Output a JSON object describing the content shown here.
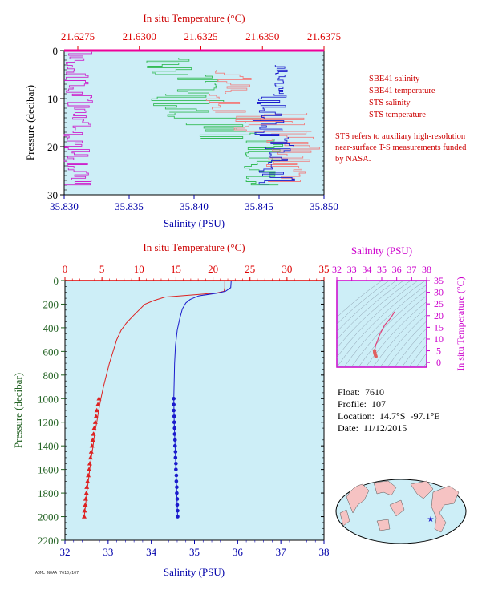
{
  "top_chart": {
    "top_axis_title": "In situ Temperature (°C)",
    "bottom_axis_title": "Salinity (PSU)",
    "y_axis_title": "Pressure (decibar)",
    "top_ticks": [
      "21.6275",
      "21.6300",
      "21.6325",
      "21.6350",
      "21.6375"
    ],
    "bottom_ticks": [
      "35.830",
      "35.835",
      "35.840",
      "35.845",
      "35.850"
    ],
    "y_ticks": [
      "0",
      "10",
      "20",
      "30"
    ],
    "legend": [
      {
        "label": "SBE41 salinity",
        "color": "#1a1acc"
      },
      {
        "label": "SBE41 temperature",
        "color": "#dd2222"
      },
      {
        "label": "STS salinity",
        "color": "#cc22cc"
      },
      {
        "label": "STS temperature",
        "color": "#33bb55"
      }
    ],
    "note": "STS refers to auxiliary high-resolution near-surface T-S measurements funded by NASA."
  },
  "main_chart": {
    "top_axis_title": "In situ Temperature (°C)",
    "bottom_axis_title": "Salinity (PSU)",
    "y_axis_title": "Pressure (decibar)",
    "top_ticks": [
      "0",
      "5",
      "10",
      "15",
      "20",
      "25",
      "30",
      "35"
    ],
    "bottom_ticks": [
      "32",
      "33",
      "34",
      "35",
      "36",
      "37",
      "38"
    ],
    "y_ticks": [
      "0",
      "200",
      "400",
      "600",
      "800",
      "1000",
      "1200",
      "1400",
      "1600",
      "1800",
      "2000",
      "2200"
    ]
  },
  "ts_chart": {
    "top_axis_title": "Salinity (PSU)",
    "right_axis_title": "In situ Temperature (°C)",
    "top_ticks": [
      "32",
      "33",
      "34",
      "35",
      "36",
      "37",
      "38"
    ],
    "right_ticks": [
      "0",
      "5",
      "10",
      "15",
      "20",
      "25",
      "30",
      "35"
    ]
  },
  "info": {
    "float": "Float:  7610",
    "profile": "Profile:  107",
    "location": "Location:  14.7°S  -97.1°E",
    "date": "Date:  11/12/2015"
  },
  "footer_code": "AOML NOAA 7610/107",
  "colors": {
    "background_panel": "#cdeef7",
    "temperature": "#dd2222",
    "salinity": "#1a1acc",
    "sts_salinity": "#cc22cc",
    "sts_temperature": "#33bb55",
    "axis_red": "#dd0000",
    "axis_blue": "#0000aa",
    "axis_green": "#1f5f1f",
    "axis_magenta": "#cc00cc"
  },
  "chart_data": [
    {
      "type": "line",
      "title": "",
      "xlabel": "Salinity (PSU)",
      "x2label": "In situ Temperature (°C)",
      "ylabel": "Pressure (decibar)",
      "xlim": [
        32,
        38
      ],
      "x2lim": [
        0,
        35
      ],
      "ylim": [
        2200,
        0
      ],
      "grid": false,
      "series": [
        {
          "name": "temperature",
          "axis": "top",
          "points": [
            [
              21.6,
              0
            ],
            [
              21.6,
              60
            ],
            [
              21.5,
              90
            ],
            [
              20.5,
              105
            ],
            [
              17.5,
              120
            ],
            [
              13.5,
              140
            ],
            [
              12.0,
              170
            ],
            [
              10.8,
              200
            ],
            [
              10.0,
              250
            ],
            [
              9.2,
              300
            ],
            [
              8.3,
              360
            ],
            [
              7.6,
              420
            ],
            [
              7.0,
              500
            ],
            [
              6.5,
              600
            ],
            [
              6.0,
              700
            ],
            [
              5.6,
              800
            ],
            [
              5.2,
              900
            ],
            [
              4.85,
              1000
            ],
            [
              4.55,
              1100
            ],
            [
              4.3,
              1200
            ],
            [
              4.0,
              1300
            ],
            [
              3.8,
              1400
            ],
            [
              3.55,
              1500
            ],
            [
              3.35,
              1600
            ],
            [
              3.15,
              1700
            ],
            [
              2.95,
              1800
            ],
            [
              2.8,
              1900
            ],
            [
              2.6,
              2000
            ]
          ],
          "markers": [
            [
              4.6,
              1000
            ],
            [
              4.45,
              1050
            ],
            [
              4.3,
              1100
            ],
            [
              4.2,
              1150
            ],
            [
              4.1,
              1200
            ],
            [
              3.95,
              1250
            ],
            [
              3.85,
              1300
            ],
            [
              3.75,
              1350
            ],
            [
              3.65,
              1400
            ],
            [
              3.55,
              1450
            ],
            [
              3.45,
              1500
            ],
            [
              3.35,
              1550
            ],
            [
              3.25,
              1600
            ],
            [
              3.15,
              1650
            ],
            [
              3.05,
              1700
            ],
            [
              2.95,
              1750
            ],
            [
              2.9,
              1800
            ],
            [
              2.8,
              1850
            ],
            [
              2.75,
              1900
            ],
            [
              2.65,
              1950
            ],
            [
              2.6,
              2000
            ]
          ]
        },
        {
          "name": "salinity",
          "axis": "bottom",
          "points": [
            [
              35.85,
              0
            ],
            [
              35.84,
              60
            ],
            [
              35.72,
              90
            ],
            [
              35.55,
              105
            ],
            [
              35.1,
              130
            ],
            [
              34.9,
              160
            ],
            [
              34.8,
              190
            ],
            [
              34.72,
              240
            ],
            [
              34.66,
              320
            ],
            [
              34.6,
              420
            ],
            [
              34.56,
              550
            ],
            [
              34.54,
              700
            ],
            [
              34.53,
              850
            ],
            [
              34.52,
              1000
            ],
            [
              34.53,
              1200
            ],
            [
              34.55,
              1400
            ],
            [
              34.57,
              1600
            ],
            [
              34.59,
              1800
            ],
            [
              34.61,
              2000
            ]
          ],
          "markers": [
            [
              34.52,
              1000
            ],
            [
              34.52,
              1050
            ],
            [
              34.52,
              1100
            ],
            [
              34.53,
              1150
            ],
            [
              34.53,
              1200
            ],
            [
              34.54,
              1250
            ],
            [
              34.54,
              1300
            ],
            [
              34.55,
              1350
            ],
            [
              34.55,
              1400
            ],
            [
              34.56,
              1450
            ],
            [
              34.56,
              1500
            ],
            [
              34.57,
              1550
            ],
            [
              34.57,
              1600
            ],
            [
              34.58,
              1650
            ],
            [
              34.58,
              1700
            ],
            [
              34.59,
              1750
            ],
            [
              34.59,
              1800
            ],
            [
              34.6,
              1850
            ],
            [
              34.6,
              1900
            ],
            [
              34.61,
              1950
            ],
            [
              34.61,
              2000
            ]
          ]
        }
      ]
    },
    {
      "type": "scatter",
      "title": "",
      "xlabel": "Salinity (PSU)",
      "ylabel": "In situ Temperature (°C)",
      "xlim": [
        32,
        38
      ],
      "ylim": [
        -2,
        35
      ],
      "series": [
        {
          "name": "T-S",
          "points": [
            [
              35.85,
              21.6
            ],
            [
              35.6,
              19
            ],
            [
              35.2,
              16
            ],
            [
              34.95,
              13
            ],
            [
              34.8,
              11
            ],
            [
              34.7,
              9
            ],
            [
              34.6,
              7.5
            ],
            [
              34.55,
              6
            ],
            [
              34.52,
              5
            ],
            [
              34.53,
              4.3
            ],
            [
              34.56,
              3.6
            ],
            [
              34.59,
              3.0
            ],
            [
              34.61,
              2.6
            ]
          ]
        }
      ]
    },
    {
      "type": "line",
      "title": "",
      "xlabel": "Salinity (PSU)",
      "x2label": "In situ Temperature (°C)",
      "ylabel": "Pressure (decibar)",
      "xlim": [
        35.83,
        35.85
      ],
      "x2lim": [
        21.6262,
        21.6375
      ],
      "ylim": [
        30,
        0
      ],
      "series": [
        {
          "name": "STS salinity",
          "pattern": "stepped, 35.830–35.832 PSU over 0–28 dbar"
        },
        {
          "name": "STS temperature",
          "pattern": "stepped, 21.6300–21.6355 °C over 0–28 dbar"
        },
        {
          "name": "SBE41 salinity",
          "pattern": "stepped, 35.8445–35.8480 PSU over 3–28 dbar"
        },
        {
          "name": "SBE41 temperature",
          "pattern": "stepped, 21.6325–21.6370 °C over 4–28 dbar"
        }
      ]
    }
  ]
}
